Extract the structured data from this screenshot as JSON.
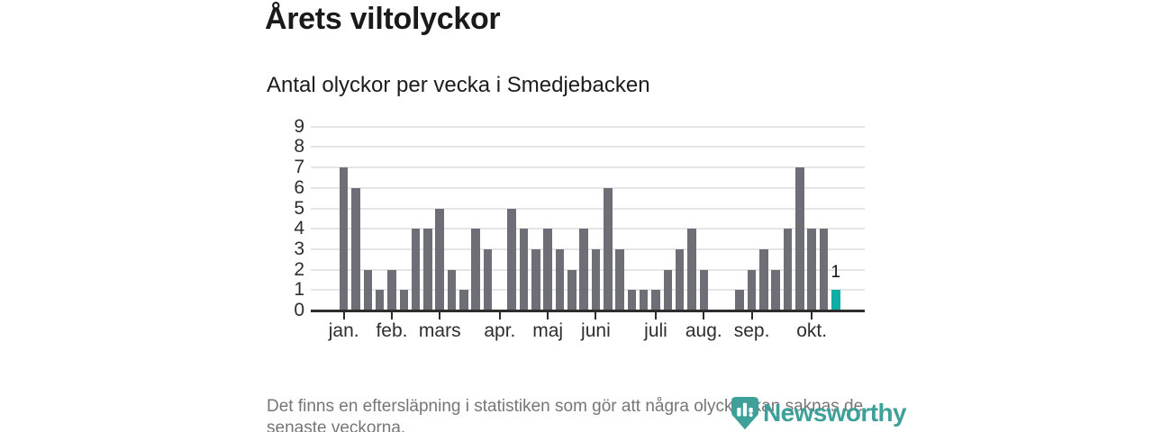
{
  "chart_data": {
    "type": "bar",
    "title": "Årets viltolyckor",
    "subtitle": "Antal olyckor per vecka i Smedjebacken",
    "x_unit": "vecka",
    "weeks": [
      1,
      2,
      3,
      4,
      5,
      6,
      7,
      8,
      9,
      10,
      11,
      12,
      13,
      14,
      15,
      16,
      17,
      18,
      19,
      20,
      21,
      22,
      23,
      24,
      25,
      26,
      27,
      28,
      29,
      30,
      31,
      32,
      33,
      34,
      35,
      36,
      37,
      38,
      39,
      40,
      41,
      42
    ],
    "values": [
      7,
      6,
      2,
      1,
      2,
      1,
      4,
      4,
      5,
      2,
      1,
      4,
      3,
      0,
      5,
      4,
      3,
      4,
      3,
      2,
      4,
      3,
      6,
      3,
      1,
      1,
      1,
      2,
      3,
      4,
      2,
      0,
      0,
      1,
      2,
      3,
      2,
      4,
      7,
      4,
      4,
      1
    ],
    "highlight_last_bar": true,
    "annotation": {
      "text": "1",
      "week": 42
    },
    "month_ticks": [
      {
        "label": "jan.",
        "week": 1
      },
      {
        "label": "feb.",
        "week": 5
      },
      {
        "label": "mars",
        "week": 9
      },
      {
        "label": "apr.",
        "week": 14
      },
      {
        "label": "maj",
        "week": 18
      },
      {
        "label": "juni",
        "week": 22
      },
      {
        "label": "juli",
        "week": 27
      },
      {
        "label": "aug.",
        "week": 31
      },
      {
        "label": "sep.",
        "week": 35
      },
      {
        "label": "okt.",
        "week": 40
      }
    ],
    "yticks": [
      0,
      1,
      2,
      3,
      4,
      5,
      6,
      7,
      8,
      9
    ],
    "ylim": [
      0,
      9
    ],
    "grid": true,
    "legend": "none"
  },
  "footer": {
    "lines": [
      "Det finns en eftersläpning i statistiken som gör att några olyckor kan saknas de",
      "senaste veckorna."
    ]
  },
  "branding": {
    "logo_text": "Newsworthy",
    "logo_icon": "bar-chart-marker-icon"
  },
  "colors": {
    "bar": "#6e6e76",
    "highlight": "#10ada5",
    "grid": "#e5e5e5",
    "axis": "#2d2d2d",
    "axis_text": "#2e2e2e",
    "title_text": "#1a1a1a",
    "footer_text": "#767676",
    "logo": "#3fa09a",
    "background": "#ffffff"
  }
}
